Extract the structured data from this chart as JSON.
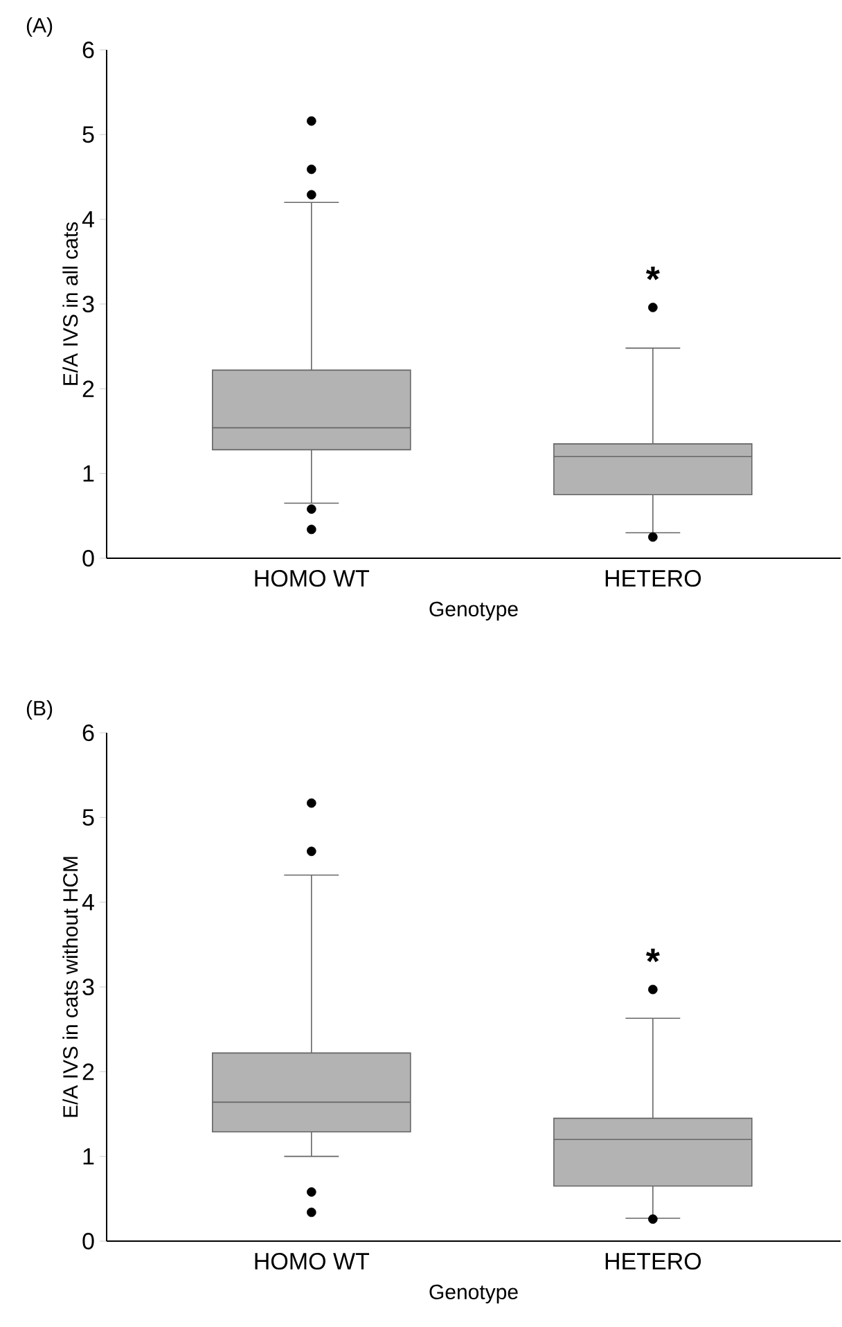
{
  "chart_data": [
    {
      "type": "box",
      "title": "(A)",
      "xlabel": "Genotype",
      "ylabel": "E/A IVS in all cats",
      "categories": [
        "HOMO WT",
        "HETERO"
      ],
      "color": "#b3b3b3",
      "marker": "circle",
      "ylim": [
        0,
        6
      ],
      "yticks": [
        0,
        1,
        2,
        3,
        4,
        5,
        6
      ],
      "annotations": [
        "*"
      ],
      "boxes": [
        {
          "low": 0.65,
          "q1": 1.28,
          "median": 1.54,
          "q3": 2.22,
          "high": 4.2,
          "outliers": [
            5.16,
            4.59,
            4.29,
            0.58,
            0.34
          ]
        },
        {
          "low": 0.3,
          "q1": 0.75,
          "median": 1.2,
          "q3": 1.35,
          "high": 2.48,
          "outliers": [
            2.96,
            0.25
          ]
        }
      ]
    },
    {
      "type": "box",
      "title": "(B)",
      "xlabel": "Genotype",
      "ylabel": "E/A IVS in cats without HCM",
      "categories": [
        "HOMO WT",
        "HETERO"
      ],
      "color": "#b3b3b3",
      "marker": "circle",
      "ylim": [
        0,
        6
      ],
      "yticks": [
        0,
        1,
        2,
        3,
        4,
        5,
        6
      ],
      "annotations": [
        "*"
      ],
      "boxes": [
        {
          "low": 1.0,
          "q1": 1.29,
          "median": 1.64,
          "q3": 2.22,
          "high": 4.32,
          "outliers": [
            5.17,
            4.6,
            0.58,
            0.34
          ]
        },
        {
          "low": 0.27,
          "q1": 0.65,
          "median": 1.2,
          "q3": 1.45,
          "high": 2.63,
          "outliers": [
            2.97,
            0.26
          ]
        }
      ]
    }
  ]
}
